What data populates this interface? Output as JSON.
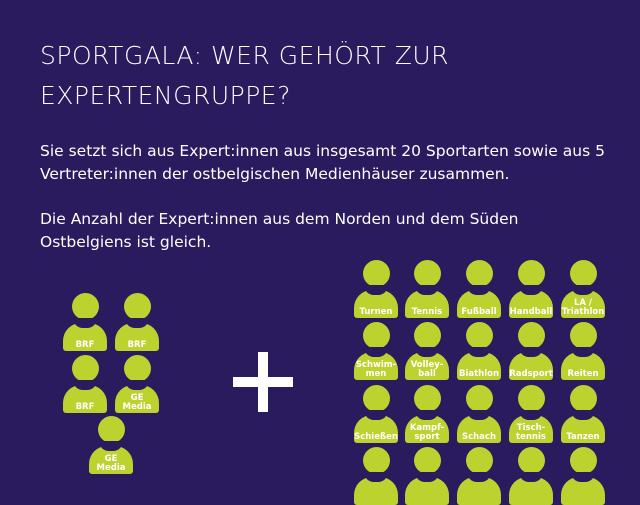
{
  "title": [
    "SPORTGALA: WER GEHÖRT ZUR",
    "EXPERTENGRUPPE?"
  ],
  "paragraphs": [
    [
      "Sie setzt sich aus Expert:innen aus insgesamt 20 Sportarten sowie aus 5",
      "Vertreter:innen der ostbelgischen Medienhäuser zusammen."
    ],
    [
      "Die Anzahl der Expert:innen aus dem Norden und dem Süden",
      "Ostbelgiens ist gleich."
    ]
  ],
  "colors": {
    "background": "#2a1a5e",
    "figure": "#bcd22e"
  },
  "media": [
    "BRF",
    "BRF",
    "BRF",
    "GE\nMedia",
    "GE\nMedia"
  ],
  "sports": [
    "Turnen",
    "Tennis",
    "Fußball",
    "Handball",
    "LA /\nTriathlon",
    "Schwim-\nmen",
    "Volley-\nball",
    "Biathlon",
    "Radsport",
    "Reiten",
    "Schießen",
    "Kampf-\nsport",
    "Schach",
    "Tisch-\ntennis",
    "Tanzen",
    "",
    "",
    "",
    "",
    ""
  ],
  "plus_icon": "plus-icon"
}
